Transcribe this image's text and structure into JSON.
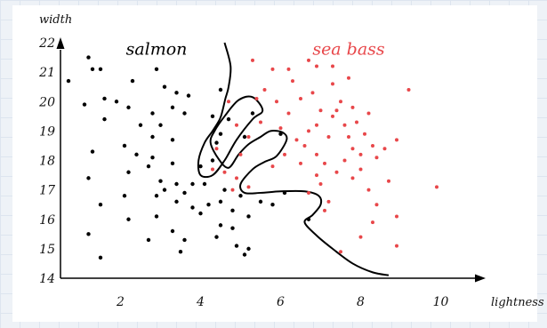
{
  "colors": {
    "salmon": "#000000",
    "sea_bass": "#e8474a",
    "boundary": "#000000",
    "axis": "#000000"
  },
  "chart_data": {
    "type": "scatter",
    "xlabel": "lightness",
    "ylabel": "width",
    "xlim": [
      0.5,
      10.5
    ],
    "ylim": [
      14,
      22
    ],
    "xticks": [
      2,
      4,
      6,
      8,
      10
    ],
    "yticks": [
      14,
      15,
      16,
      17,
      18,
      19,
      20,
      21,
      22
    ],
    "grid": false,
    "annotations": [
      {
        "text": "salmon",
        "x": 2.9,
        "y": 21.6,
        "series": "salmon"
      },
      {
        "text": "sea bass",
        "x": 7.7,
        "y": 21.6,
        "series": "sea_bass"
      }
    ],
    "series": [
      {
        "key": "salmon",
        "points": [
          [
            0.7,
            20.7
          ],
          [
            1.1,
            19.9
          ],
          [
            1.2,
            21.5
          ],
          [
            1.3,
            21.1
          ],
          [
            1.5,
            21.1
          ],
          [
            1.6,
            20.1
          ],
          [
            1.6,
            19.4
          ],
          [
            1.3,
            18.3
          ],
          [
            1.2,
            17.4
          ],
          [
            1.5,
            16.5
          ],
          [
            1.2,
            15.5
          ],
          [
            1.5,
            14.7
          ],
          [
            1.9,
            20.0
          ],
          [
            2.3,
            20.7
          ],
          [
            2.2,
            19.8
          ],
          [
            2.5,
            19.2
          ],
          [
            2.1,
            18.5
          ],
          [
            2.4,
            18.2
          ],
          [
            2.2,
            17.6
          ],
          [
            2.1,
            16.8
          ],
          [
            2.2,
            16.0
          ],
          [
            2.7,
            15.3
          ],
          [
            2.9,
            21.1
          ],
          [
            3.1,
            20.5
          ],
          [
            2.8,
            19.6
          ],
          [
            3.0,
            19.2
          ],
          [
            3.4,
            20.3
          ],
          [
            3.3,
            19.8
          ],
          [
            3.6,
            19.6
          ],
          [
            2.8,
            18.8
          ],
          [
            3.3,
            18.7
          ],
          [
            2.8,
            18.1
          ],
          [
            3.3,
            17.9
          ],
          [
            2.7,
            17.8
          ],
          [
            3.0,
            17.3
          ],
          [
            3.4,
            17.2
          ],
          [
            3.1,
            17.0
          ],
          [
            2.9,
            16.8
          ],
          [
            3.4,
            16.6
          ],
          [
            3.6,
            16.9
          ],
          [
            3.8,
            17.2
          ],
          [
            2.9,
            16.1
          ],
          [
            3.3,
            15.6
          ],
          [
            3.6,
            15.3
          ],
          [
            3.5,
            14.9
          ],
          [
            3.8,
            16.4
          ],
          [
            4.0,
            16.2
          ],
          [
            4.2,
            16.5
          ],
          [
            4.1,
            17.2
          ],
          [
            4.0,
            17.8
          ],
          [
            4.3,
            18.0
          ],
          [
            4.4,
            18.6
          ],
          [
            4.5,
            18.9
          ],
          [
            4.3,
            19.5
          ],
          [
            4.5,
            20.4
          ],
          [
            4.7,
            19.4
          ],
          [
            4.6,
            17.0
          ],
          [
            4.5,
            16.6
          ],
          [
            4.8,
            16.3
          ],
          [
            4.5,
            15.8
          ],
          [
            4.8,
            15.7
          ],
          [
            4.4,
            15.4
          ],
          [
            4.9,
            15.1
          ],
          [
            5.1,
            14.8
          ],
          [
            5.2,
            15.0
          ],
          [
            5.0,
            16.8
          ],
          [
            5.1,
            18.8
          ],
          [
            5.3,
            19.6
          ],
          [
            5.2,
            16.1
          ],
          [
            5.5,
            16.6
          ],
          [
            5.8,
            16.5
          ],
          [
            6.0,
            18.9
          ],
          [
            6.1,
            16.9
          ],
          [
            6.7,
            16.0
          ],
          [
            3.7,
            20.2
          ]
        ]
      },
      {
        "key": "sea_bass",
        "points": [
          [
            4.7,
            20.0
          ],
          [
            4.9,
            19.2
          ],
          [
            4.4,
            18.4
          ],
          [
            4.3,
            17.7
          ],
          [
            4.6,
            17.6
          ],
          [
            4.9,
            17.4
          ],
          [
            4.8,
            17.0
          ],
          [
            5.2,
            17.1
          ],
          [
            5.0,
            18.2
          ],
          [
            5.2,
            18.8
          ],
          [
            5.5,
            19.3
          ],
          [
            5.4,
            20.1
          ],
          [
            5.3,
            21.4
          ],
          [
            5.8,
            21.1
          ],
          [
            5.6,
            20.4
          ],
          [
            5.9,
            20.0
          ],
          [
            6.2,
            21.1
          ],
          [
            6.3,
            20.7
          ],
          [
            6.5,
            20.1
          ],
          [
            6.2,
            19.6
          ],
          [
            6.0,
            19.1
          ],
          [
            6.4,
            18.7
          ],
          [
            6.1,
            18.2
          ],
          [
            6.5,
            17.9
          ],
          [
            5.8,
            17.8
          ],
          [
            6.7,
            21.4
          ],
          [
            6.9,
            21.2
          ],
          [
            6.8,
            20.3
          ],
          [
            7.0,
            19.7
          ],
          [
            6.9,
            19.2
          ],
          [
            6.7,
            19.0
          ],
          [
            6.6,
            18.5
          ],
          [
            6.9,
            18.2
          ],
          [
            7.2,
            18.8
          ],
          [
            7.3,
            19.5
          ],
          [
            7.5,
            20.0
          ],
          [
            7.3,
            20.6
          ],
          [
            7.7,
            20.8
          ],
          [
            7.3,
            21.2
          ],
          [
            7.4,
            19.7
          ],
          [
            7.1,
            17.9
          ],
          [
            6.9,
            17.5
          ],
          [
            7.0,
            17.2
          ],
          [
            6.7,
            16.9
          ],
          [
            7.2,
            16.6
          ],
          [
            7.6,
            19.2
          ],
          [
            7.8,
            19.8
          ],
          [
            7.9,
            19.3
          ],
          [
            7.7,
            18.8
          ],
          [
            7.8,
            18.4
          ],
          [
            7.6,
            18.0
          ],
          [
            7.4,
            17.6
          ],
          [
            7.8,
            17.4
          ],
          [
            8.0,
            18.2
          ],
          [
            8.0,
            17.7
          ],
          [
            8.2,
            19.6
          ],
          [
            8.1,
            18.9
          ],
          [
            8.3,
            18.5
          ],
          [
            8.4,
            18.1
          ],
          [
            8.2,
            17.0
          ],
          [
            8.4,
            16.5
          ],
          [
            8.3,
            15.9
          ],
          [
            8.6,
            18.4
          ],
          [
            8.7,
            17.3
          ],
          [
            8.9,
            18.7
          ],
          [
            8.9,
            16.1
          ],
          [
            8.9,
            15.1
          ],
          [
            9.2,
            20.4
          ],
          [
            9.9,
            17.1
          ],
          [
            8.0,
            15.4
          ],
          [
            7.5,
            14.9
          ],
          [
            7.1,
            16.3
          ]
        ]
      }
    ],
    "boundary": [
      [
        4.6,
        22.0
      ],
      [
        4.75,
        21.2
      ],
      [
        4.7,
        20.5
      ],
      [
        4.62,
        20.1
      ],
      [
        4.55,
        19.7
      ],
      [
        4.48,
        19.4
      ],
      [
        4.3,
        19.0
      ],
      [
        4.1,
        18.6
      ],
      [
        3.95,
        18.0
      ],
      [
        4.0,
        17.5
      ],
      [
        4.3,
        17.5
      ],
      [
        4.6,
        18.0
      ],
      [
        4.9,
        18.7
      ],
      [
        5.3,
        19.4
      ],
      [
        5.55,
        19.7
      ],
      [
        5.3,
        20.15
      ],
      [
        4.95,
        20.05
      ],
      [
        4.6,
        19.5
      ],
      [
        4.35,
        19.0
      ],
      [
        4.25,
        18.6
      ],
      [
        4.45,
        18.05
      ],
      [
        4.7,
        17.75
      ],
      [
        4.95,
        18.2
      ],
      [
        5.2,
        18.55
      ],
      [
        5.5,
        18.8
      ],
      [
        5.75,
        19.0
      ],
      [
        6.05,
        18.95
      ],
      [
        6.15,
        18.7
      ],
      [
        5.9,
        18.15
      ],
      [
        5.6,
        17.95
      ],
      [
        5.3,
        17.7
      ],
      [
        5.0,
        17.2
      ],
      [
        5.1,
        16.9
      ],
      [
        5.5,
        16.9
      ],
      [
        6.0,
        16.95
      ],
      [
        6.6,
        16.95
      ],
      [
        6.95,
        16.8
      ],
      [
        7.0,
        16.5
      ],
      [
        6.8,
        16.15
      ],
      [
        6.6,
        15.9
      ],
      [
        6.9,
        15.45
      ],
      [
        7.3,
        15.0
      ],
      [
        7.8,
        14.5
      ],
      [
        8.3,
        14.2
      ],
      [
        8.7,
        14.1
      ]
    ]
  }
}
